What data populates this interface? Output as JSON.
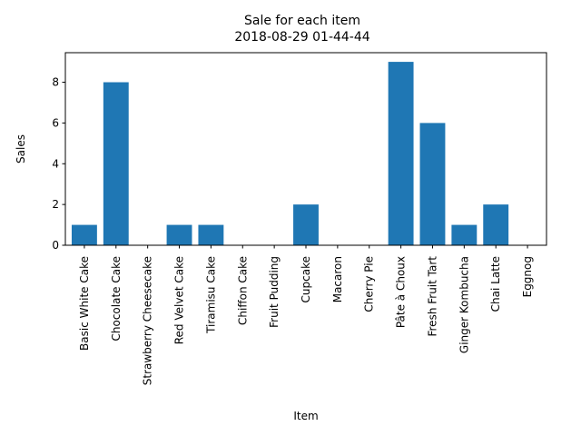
{
  "chart_data": {
    "type": "bar",
    "title": "Sale for each item",
    "subtitle": "2018-08-29 01-44-44",
    "xlabel": "Item",
    "ylabel": "Sales",
    "categories": [
      "Basic White Cake",
      "Chocolate Cake",
      "Strawberry Cheesecake",
      "Red Velvet Cake",
      "Tiramisu Cake",
      "Chiffon Cake",
      "Fruit Pudding",
      "Cupcake",
      "Macaron",
      "Cherry Pie",
      "Pâte à Choux",
      "Fresh Fruit Tart",
      "Ginger Kombucha",
      "Chai Latte",
      "Eggnog"
    ],
    "values": [
      1,
      8,
      0,
      1,
      1,
      0,
      0,
      2,
      0,
      0,
      9,
      6,
      1,
      2,
      0
    ],
    "ylim": [
      0,
      9.45
    ],
    "yticks": [
      0,
      2,
      4,
      6,
      8
    ],
    "grid": false,
    "bar_color": "#1f77b4"
  }
}
